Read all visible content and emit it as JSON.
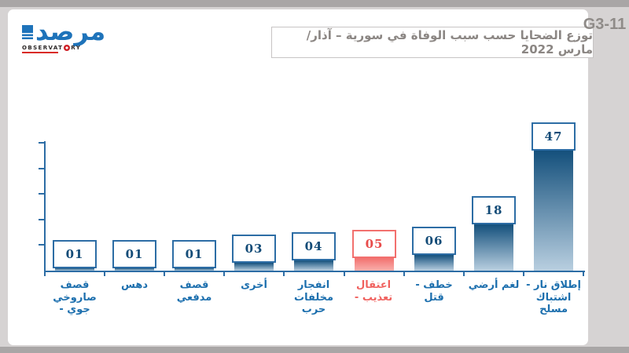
{
  "page": {
    "figure_id": "G3-11",
    "background_color": "#d6d3d3",
    "card_color": "#ffffff"
  },
  "logo": {
    "wordmark": "مرصد",
    "observatory_prefix": "OBSERVAT",
    "observatory_suffix": "RY",
    "brand_blue": "#1e73ba",
    "accent_red": "#d92b27"
  },
  "header": {
    "title": "توزع الضحايا حسب سبب الوفاة في سورية – آذار/ مارس 2022"
  },
  "chart_data": {
    "type": "bar",
    "title": "توزع الضحايا حسب سبب الوفاة في سورية – آذار/ مارس 2022",
    "categories": [
      "قصف صاروخي - جوي",
      "دهس",
      "قصف مدفعي",
      "أخرى",
      "انفجار مخلفات حرب",
      "اعتقال - تعذيب",
      "خطف - قتل",
      "لغم أرضي",
      "إطلاق نار - اشتباك مسلح"
    ],
    "values": [
      1,
      1,
      1,
      3,
      4,
      5,
      6,
      18,
      47
    ],
    "value_labels": [
      "01",
      "01",
      "01",
      "03",
      "04",
      "05",
      "06",
      "18",
      "47"
    ],
    "label_lines": [
      [
        "قصف",
        "صاروخي",
        "- جوي"
      ],
      [
        "دهس"
      ],
      [
        "قصف",
        "مدفعي"
      ],
      [
        "أخرى"
      ],
      [
        "انفجار",
        "مخلفات",
        "حرب"
      ],
      [
        "اعتقال",
        "- تعذيب"
      ],
      [
        "- خطف",
        "قتل"
      ],
      [
        "لغم أرضي"
      ],
      [
        "- إطلاق نار",
        "اشتباك",
        "مسلح"
      ]
    ],
    "highlight_index": 5,
    "xlabel": "",
    "ylabel": "",
    "yaxis": {
      "min": 0,
      "max": 50,
      "tick_step": 10,
      "tick_labels_visible": false
    },
    "grid": false,
    "legend": null,
    "colors": {
      "bar_border": "#2d6da5",
      "bar_value_text": "#134b77",
      "bar_gradient_top": "#14507c",
      "bar_gradient_bottom": "#b9cfe0",
      "highlight_border": "#f2706e",
      "highlight_text": "#e84b4a",
      "highlight_gradient_top": "#f2716f",
      "highlight_gradient_bottom": "#f9b0ac",
      "axis": "#2d6da5",
      "category_label": "#1c6fae",
      "category_label_highlight": "#f0625f"
    }
  }
}
